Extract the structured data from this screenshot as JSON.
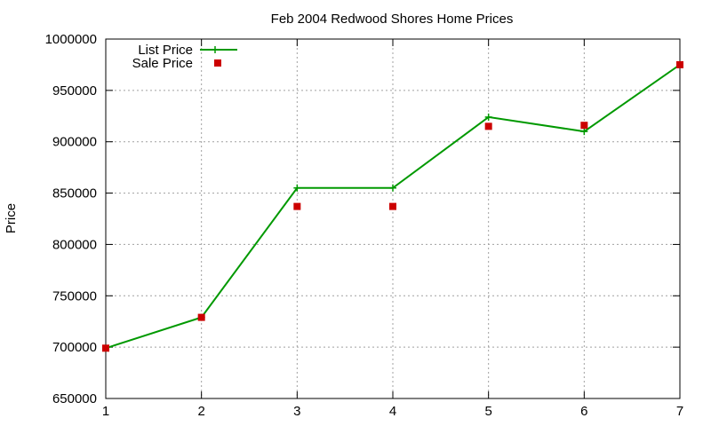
{
  "chart_data": {
    "type": "line",
    "title": "Feb 2004 Redwood Shores Home Prices",
    "xlabel": "",
    "ylabel": "Price",
    "x": [
      1,
      2,
      3,
      4,
      5,
      6,
      7
    ],
    "xlim": [
      1,
      7
    ],
    "ylim": [
      650000,
      1000000
    ],
    "x_ticks": [
      "1",
      "2",
      "3",
      "4",
      "5",
      "6",
      "7"
    ],
    "y_ticks": [
      "650000",
      "700000",
      "750000",
      "800000",
      "850000",
      "900000",
      "950000",
      "1000000"
    ],
    "grid": true,
    "legend_position": "top-left",
    "series": [
      {
        "name": "List Price",
        "style": "line+cross",
        "color": "#009900",
        "values": [
          699000,
          729000,
          855000,
          855000,
          924000,
          910000,
          975000
        ]
      },
      {
        "name": "Sale Price",
        "style": "square-points",
        "color": "#cc0000",
        "values": [
          699000,
          729000,
          837000,
          837000,
          915000,
          916000,
          975000
        ]
      }
    ]
  }
}
